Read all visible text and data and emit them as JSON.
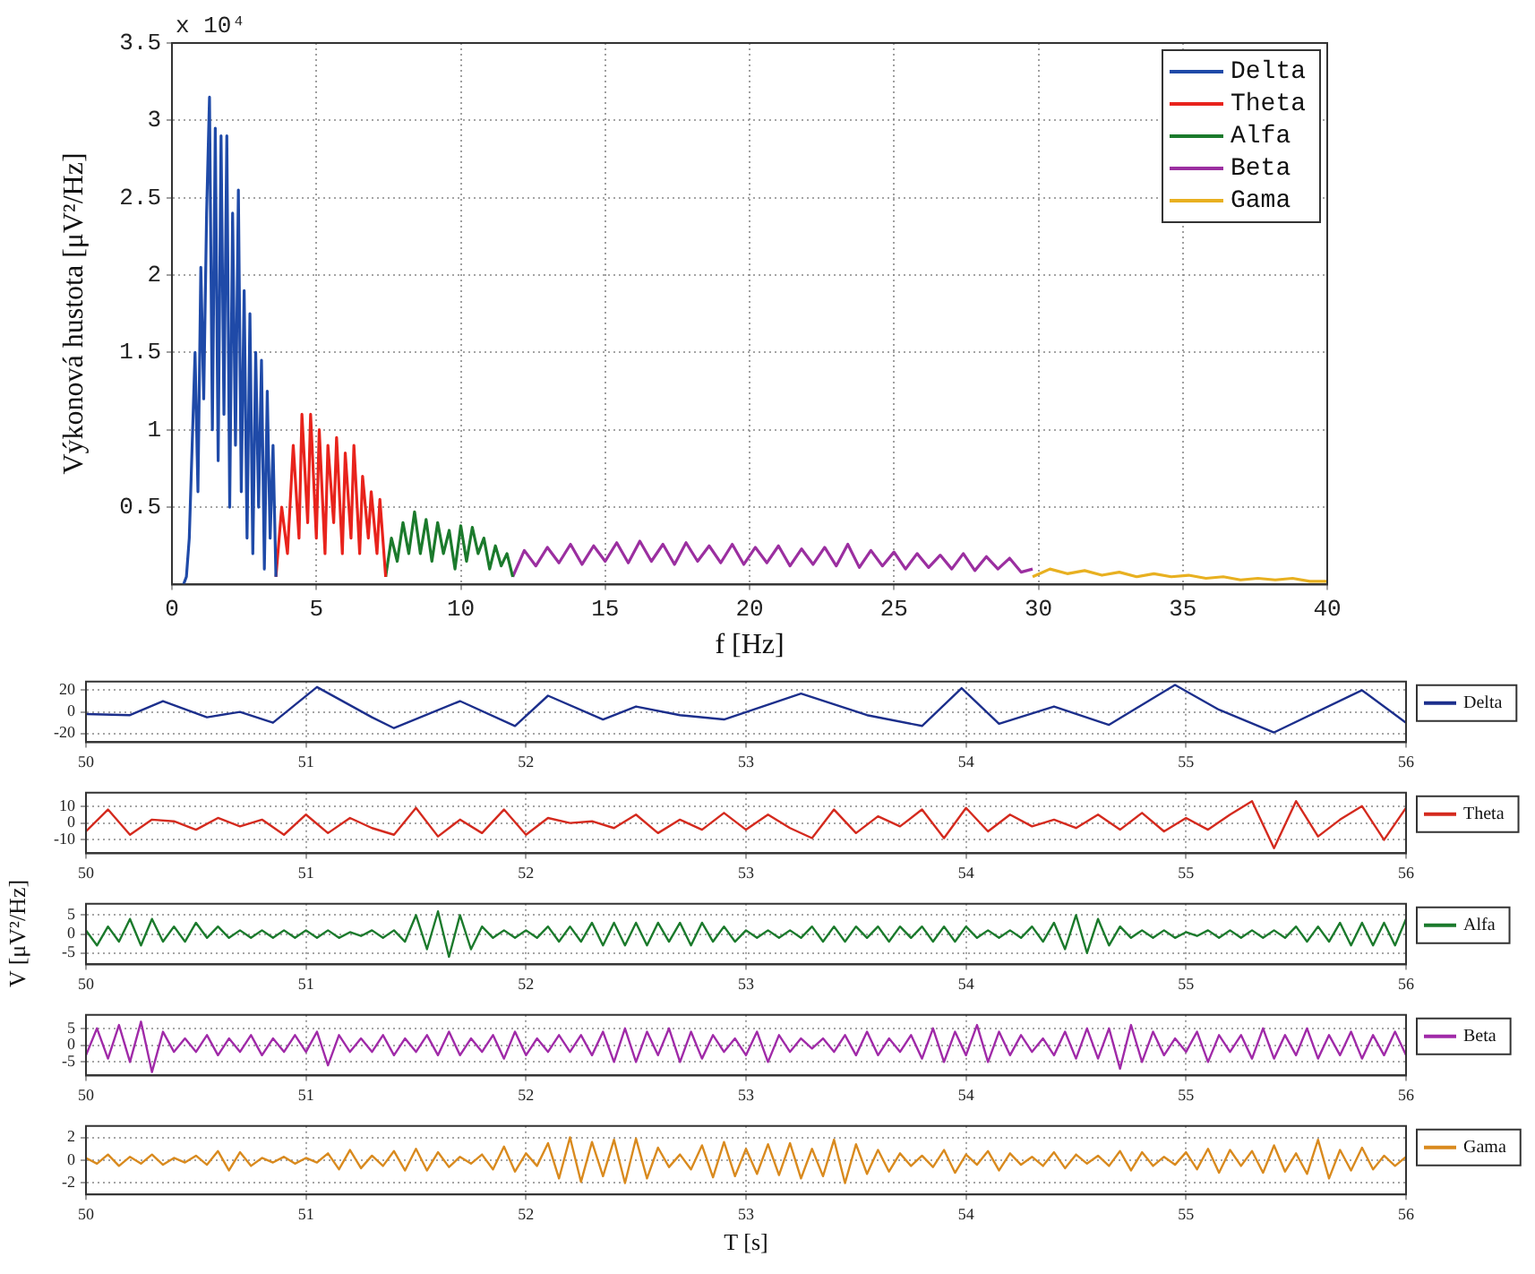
{
  "chart_data": [
    {
      "type": "line",
      "xlabel": "f [Hz]",
      "ylabel": "Výkonová hustota [μV²/Hz]",
      "annotations": [
        "x 10⁴"
      ],
      "xlim": [
        0,
        40
      ],
      "xticks": [
        0,
        5,
        10,
        15,
        20,
        25,
        30,
        35,
        40
      ],
      "ylim": [
        0,
        3.5
      ],
      "yticks": [
        0.5,
        1,
        1.5,
        2,
        2.5,
        3,
        3.5
      ],
      "grid": true,
      "legend": "top right",
      "series": [
        {
          "name": "Delta",
          "color": "#1f4aa8",
          "x": [
            0.4,
            0.5,
            0.6,
            0.7,
            0.8,
            0.9,
            1.0,
            1.1,
            1.2,
            1.3,
            1.4,
            1.5,
            1.6,
            1.7,
            1.8,
            1.9,
            2.0,
            2.1,
            2.2,
            2.3,
            2.4,
            2.5,
            2.6,
            2.7,
            2.8,
            2.9,
            3.0,
            3.1,
            3.2,
            3.3,
            3.4,
            3.5,
            3.6
          ],
          "values": [
            0,
            0.05,
            0.3,
            0.9,
            1.5,
            0.6,
            2.05,
            1.2,
            2.4,
            3.15,
            1.0,
            2.95,
            0.8,
            2.9,
            1.1,
            2.9,
            0.5,
            2.4,
            0.9,
            2.55,
            0.6,
            1.9,
            0.3,
            1.75,
            0.2,
            1.5,
            0.5,
            1.45,
            0.1,
            1.25,
            0.3,
            0.9,
            0.05
          ]
        },
        {
          "name": "Theta",
          "color": "#e8231c",
          "x": [
            3.6,
            3.8,
            4.0,
            4.2,
            4.4,
            4.5,
            4.7,
            4.8,
            5.0,
            5.1,
            5.3,
            5.4,
            5.6,
            5.7,
            5.9,
            6.0,
            6.2,
            6.3,
            6.5,
            6.6,
            6.8,
            6.9,
            7.1,
            7.2,
            7.3,
            7.4
          ],
          "values": [
            0.05,
            0.5,
            0.2,
            0.9,
            0.3,
            1.1,
            0.4,
            1.1,
            0.3,
            1.0,
            0.2,
            0.9,
            0.4,
            0.95,
            0.2,
            0.85,
            0.3,
            0.9,
            0.2,
            0.7,
            0.3,
            0.6,
            0.2,
            0.55,
            0.3,
            0.05
          ]
        },
        {
          "name": "Alfa",
          "color": "#1b7a2c",
          "x": [
            7.4,
            7.6,
            7.8,
            8.0,
            8.2,
            8.4,
            8.6,
            8.8,
            9.0,
            9.2,
            9.4,
            9.6,
            9.8,
            10.0,
            10.2,
            10.4,
            10.6,
            10.8,
            11.0,
            11.2,
            11.4,
            11.6,
            11.8
          ],
          "values": [
            0.05,
            0.3,
            0.15,
            0.4,
            0.2,
            0.47,
            0.2,
            0.42,
            0.15,
            0.4,
            0.2,
            0.35,
            0.1,
            0.38,
            0.15,
            0.37,
            0.2,
            0.3,
            0.1,
            0.25,
            0.12,
            0.2,
            0.05
          ]
        },
        {
          "name": "Beta",
          "color": "#9b2fa0",
          "x": [
            11.8,
            12.2,
            12.6,
            13,
            13.4,
            13.8,
            14.2,
            14.6,
            15,
            15.4,
            15.8,
            16.2,
            16.6,
            17,
            17.4,
            17.8,
            18.2,
            18.6,
            19,
            19.4,
            19.8,
            20.2,
            20.6,
            21,
            21.4,
            21.8,
            22.2,
            22.6,
            23,
            23.4,
            23.8,
            24.2,
            24.6,
            25,
            25.4,
            25.8,
            26.2,
            26.6,
            27,
            27.4,
            27.8,
            28.2,
            28.6,
            29,
            29.4,
            29.8
          ],
          "values": [
            0.05,
            0.22,
            0.12,
            0.24,
            0.14,
            0.26,
            0.13,
            0.25,
            0.15,
            0.27,
            0.14,
            0.28,
            0.15,
            0.26,
            0.13,
            0.27,
            0.15,
            0.25,
            0.14,
            0.26,
            0.13,
            0.24,
            0.14,
            0.25,
            0.12,
            0.23,
            0.13,
            0.24,
            0.12,
            0.26,
            0.11,
            0.22,
            0.12,
            0.21,
            0.1,
            0.2,
            0.11,
            0.19,
            0.1,
            0.2,
            0.09,
            0.18,
            0.1,
            0.17,
            0.08,
            0.1
          ]
        },
        {
          "name": "Gama",
          "color": "#e8b020",
          "x": [
            29.8,
            30.4,
            31,
            31.6,
            32.2,
            32.8,
            33.4,
            34,
            34.6,
            35.2,
            35.8,
            36.4,
            37,
            37.6,
            38.2,
            38.8,
            39.4,
            40
          ],
          "values": [
            0.05,
            0.1,
            0.07,
            0.09,
            0.06,
            0.08,
            0.05,
            0.07,
            0.05,
            0.06,
            0.04,
            0.05,
            0.03,
            0.04,
            0.03,
            0.04,
            0.02,
            0.02
          ]
        }
      ]
    },
    {
      "type": "line",
      "xlim": [
        50,
        56
      ],
      "xticks": [
        50,
        51,
        52,
        53,
        54,
        55,
        56
      ],
      "ylim": [
        -28,
        28
      ],
      "yticks": [
        -20,
        0,
        20
      ],
      "grid": true,
      "legend": "right",
      "x": [
        50,
        50.2,
        50.35,
        50.55,
        50.7,
        50.85,
        51.05,
        51.3,
        51.4,
        51.7,
        51.95,
        52.1,
        52.35,
        52.5,
        52.7,
        52.9,
        53.25,
        53.55,
        53.8,
        53.98,
        54.15,
        54.4,
        54.65,
        54.95,
        55.15,
        55.4,
        55.8,
        56
      ],
      "series": [
        {
          "name": "Delta",
          "color": "#1c2f8c",
          "values": [
            -2,
            -3,
            10,
            -5,
            0,
            -10,
            23,
            -5,
            -15,
            10,
            -13,
            15,
            -7,
            5,
            -3,
            -7,
            17,
            -3,
            -13,
            22,
            -11,
            5,
            -12,
            25,
            2,
            -19,
            20,
            -10
          ]
        }
      ]
    },
    {
      "type": "line",
      "xlim": [
        50,
        56
      ],
      "xticks": [
        50,
        51,
        52,
        53,
        54,
        55,
        56
      ],
      "ylim": [
        -18,
        18
      ],
      "yticks": [
        -10,
        0,
        10
      ],
      "grid": true,
      "legend": "right",
      "x": [
        50,
        50.1,
        50.2,
        50.3,
        50.4,
        50.5,
        50.6,
        50.7,
        50.8,
        50.9,
        51,
        51.1,
        51.2,
        51.3,
        51.4,
        51.5,
        51.6,
        51.7,
        51.8,
        51.9,
        52,
        52.1,
        52.2,
        52.3,
        52.4,
        52.5,
        52.6,
        52.7,
        52.8,
        52.9,
        53,
        53.1,
        53.2,
        53.3,
        53.4,
        53.5,
        53.6,
        53.7,
        53.8,
        53.9,
        54,
        54.1,
        54.2,
        54.3,
        54.4,
        54.5,
        54.6,
        54.7,
        54.8,
        54.9,
        55,
        55.1,
        55.2,
        55.3,
        55.4,
        55.5,
        55.6,
        55.7,
        55.8,
        55.9,
        56
      ],
      "series": [
        {
          "name": "Theta",
          "color": "#d42a1e",
          "values": [
            -5,
            8,
            -7,
            2,
            1,
            -4,
            3,
            -2,
            2,
            -7,
            5,
            -6,
            3,
            -3,
            -7,
            9,
            -8,
            2,
            -6,
            8,
            -7,
            3,
            0,
            1,
            -3,
            5,
            -6,
            2,
            -4,
            6,
            -4,
            5,
            -3,
            -9,
            8,
            -6,
            4,
            -2,
            8,
            -9,
            9,
            -5,
            5,
            -2,
            2,
            -3,
            5,
            -4,
            6,
            -5,
            3,
            -4,
            5,
            13,
            -15,
            13,
            -8,
            2,
            10,
            -10,
            9
          ]
        }
      ]
    },
    {
      "type": "line",
      "ylabel": "V [μV²/Hz]",
      "xlim": [
        50,
        56
      ],
      "xticks": [
        50,
        51,
        52,
        53,
        54,
        55,
        56
      ],
      "ylim": [
        -8,
        8
      ],
      "yticks": [
        -5,
        0,
        5
      ],
      "grid": true,
      "legend": "right",
      "x": [
        50,
        50.05,
        50.1,
        50.15,
        50.2,
        50.25,
        50.3,
        50.35,
        50.4,
        50.45,
        50.5,
        50.55,
        50.6,
        50.65,
        50.7,
        50.75,
        50.8,
        50.85,
        50.9,
        50.95,
        51,
        51.05,
        51.1,
        51.15,
        51.2,
        51.25,
        51.3,
        51.35,
        51.4,
        51.45,
        51.5,
        51.55,
        51.6,
        51.65,
        51.7,
        51.75,
        51.8,
        51.85,
        51.9,
        51.95,
        52,
        52.05,
        52.1,
        52.15,
        52.2,
        52.25,
        52.3,
        52.35,
        52.4,
        52.45,
        52.5,
        52.55,
        52.6,
        52.65,
        52.7,
        52.75,
        52.8,
        52.85,
        52.9,
        52.95,
        53,
        53.05,
        53.1,
        53.15,
        53.2,
        53.25,
        53.3,
        53.35,
        53.4,
        53.45,
        53.5,
        53.55,
        53.6,
        53.65,
        53.7,
        53.75,
        53.8,
        53.85,
        53.9,
        53.95,
        54,
        54.05,
        54.1,
        54.15,
        54.2,
        54.25,
        54.3,
        54.35,
        54.4,
        54.45,
        54.5,
        54.55,
        54.6,
        54.65,
        54.7,
        54.75,
        54.8,
        54.85,
        54.9,
        54.95,
        55,
        55.05,
        55.1,
        55.15,
        55.2,
        55.25,
        55.3,
        55.35,
        55.4,
        55.45,
        55.5,
        55.55,
        55.6,
        55.65,
        55.7,
        55.75,
        55.8,
        55.85,
        55.9,
        55.95,
        56
      ],
      "series": [
        {
          "name": "Alfa",
          "color": "#1b7a2c",
          "values": [
            1,
            -3,
            2,
            -2,
            4,
            -3,
            4,
            -2,
            2,
            -2,
            3,
            -1,
            2,
            -1,
            1,
            -1,
            1,
            -1,
            1,
            -1,
            1,
            -1,
            1,
            -1,
            0.5,
            -0.5,
            1,
            -1,
            1,
            -2,
            5,
            -4,
            6,
            -6,
            5,
            -4,
            2,
            -1,
            1,
            -1,
            1,
            -1,
            2,
            -2,
            2,
            -2,
            3,
            -3,
            3,
            -3,
            3,
            -3,
            3,
            -2,
            3,
            -3,
            3,
            -2,
            2,
            -2,
            1,
            -1,
            1,
            -1,
            1,
            -1,
            2,
            -2,
            2,
            -2,
            2,
            -1,
            2,
            -2,
            2,
            -1,
            2,
            -2,
            2,
            -2,
            2,
            -1,
            1,
            -1,
            1,
            -1,
            2,
            -2,
            3,
            -4,
            5,
            -5,
            4,
            -3,
            2,
            -1,
            1,
            -1,
            1,
            -1,
            0.5,
            -0.5,
            1,
            -1,
            1,
            -1,
            1,
            -1,
            1,
            -1,
            2,
            -2,
            2,
            -2,
            3,
            -3,
            3,
            -3,
            3,
            -3,
            4
          ]
        }
      ]
    },
    {
      "type": "line",
      "xlim": [
        50,
        56
      ],
      "xticks": [
        50,
        51,
        52,
        53,
        54,
        55,
        56
      ],
      "ylim": [
        -9,
        9
      ],
      "yticks": [
        -5,
        0,
        5
      ],
      "grid": true,
      "legend": "right",
      "x": [
        50,
        50.05,
        50.1,
        50.15,
        50.2,
        50.25,
        50.3,
        50.35,
        50.4,
        50.45,
        50.5,
        50.55,
        50.6,
        50.65,
        50.7,
        50.75,
        50.8,
        50.85,
        50.9,
        50.95,
        51,
        51.05,
        51.1,
        51.15,
        51.2,
        51.25,
        51.3,
        51.35,
        51.4,
        51.45,
        51.5,
        51.55,
        51.6,
        51.65,
        51.7,
        51.75,
        51.8,
        51.85,
        51.9,
        51.95,
        52,
        52.05,
        52.1,
        52.15,
        52.2,
        52.25,
        52.3,
        52.35,
        52.4,
        52.45,
        52.5,
        52.55,
        52.6,
        52.65,
        52.7,
        52.75,
        52.8,
        52.85,
        52.9,
        52.95,
        53,
        53.05,
        53.1,
        53.15,
        53.2,
        53.25,
        53.3,
        53.35,
        53.4,
        53.45,
        53.5,
        53.55,
        53.6,
        53.65,
        53.7,
        53.75,
        53.8,
        53.85,
        53.9,
        53.95,
        54,
        54.05,
        54.1,
        54.15,
        54.2,
        54.25,
        54.3,
        54.35,
        54.4,
        54.45,
        54.5,
        54.55,
        54.6,
        54.65,
        54.7,
        54.75,
        54.8,
        54.85,
        54.9,
        54.95,
        55,
        55.05,
        55.1,
        55.15,
        55.2,
        55.25,
        55.3,
        55.35,
        55.4,
        55.45,
        55.5,
        55.55,
        55.6,
        55.65,
        55.7,
        55.75,
        55.8,
        55.85,
        55.9,
        55.95,
        56
      ],
      "series": [
        {
          "name": "Beta",
          "color": "#a02aa8",
          "values": [
            -3,
            5,
            -4,
            6,
            -5,
            7,
            -8,
            4,
            -2,
            2,
            -2,
            3,
            -3,
            2,
            -2,
            3,
            -3,
            2,
            -2,
            3,
            -2,
            4,
            -6,
            3,
            -2,
            2,
            -2,
            3,
            -3,
            2,
            -2,
            3,
            -3,
            4,
            -3,
            2,
            -2,
            3,
            -4,
            4,
            -3,
            2,
            -2,
            3,
            -2,
            3,
            -3,
            4,
            -5,
            5,
            -5,
            4,
            -3,
            5,
            -5,
            4,
            -4,
            3,
            -2,
            2,
            -3,
            4,
            -5,
            3,
            -2,
            2,
            -1,
            2,
            -2,
            3,
            -3,
            4,
            -3,
            2,
            -2,
            3,
            -4,
            5,
            -5,
            4,
            -3,
            6,
            -5,
            4,
            -3,
            3,
            -2,
            2,
            -3,
            4,
            -4,
            5,
            -4,
            5,
            -7,
            6,
            -5,
            4,
            -3,
            2,
            -2,
            4,
            -5,
            3,
            -2,
            3,
            -4,
            5,
            -4,
            3,
            -3,
            5,
            -4,
            3,
            -3,
            4,
            -4,
            3,
            -3,
            4,
            -3
          ]
        }
      ]
    },
    {
      "type": "line",
      "xlabel": "T [s]",
      "xlim": [
        50,
        56
      ],
      "xticks": [
        50,
        51,
        52,
        53,
        54,
        55,
        56
      ],
      "ylim": [
        -3,
        3
      ],
      "yticks": [
        -2,
        0,
        2
      ],
      "grid": true,
      "legend": "right",
      "x": [
        50,
        50.05,
        50.1,
        50.15,
        50.2,
        50.25,
        50.3,
        50.35,
        50.4,
        50.45,
        50.5,
        50.55,
        50.6,
        50.65,
        50.7,
        50.75,
        50.8,
        50.85,
        50.9,
        50.95,
        51,
        51.05,
        51.1,
        51.15,
        51.2,
        51.25,
        51.3,
        51.35,
        51.4,
        51.45,
        51.5,
        51.55,
        51.6,
        51.65,
        51.7,
        51.75,
        51.8,
        51.85,
        51.9,
        51.95,
        52,
        52.05,
        52.1,
        52.15,
        52.2,
        52.25,
        52.3,
        52.35,
        52.4,
        52.45,
        52.5,
        52.55,
        52.6,
        52.65,
        52.7,
        52.75,
        52.8,
        52.85,
        52.9,
        52.95,
        53,
        53.05,
        53.1,
        53.15,
        53.2,
        53.25,
        53.3,
        53.35,
        53.4,
        53.45,
        53.5,
        53.55,
        53.6,
        53.65,
        53.7,
        53.75,
        53.8,
        53.85,
        53.9,
        53.95,
        54,
        54.05,
        54.1,
        54.15,
        54.2,
        54.25,
        54.3,
        54.35,
        54.4,
        54.45,
        54.5,
        54.55,
        54.6,
        54.65,
        54.7,
        54.75,
        54.8,
        54.85,
        54.9,
        54.95,
        55,
        55.05,
        55.1,
        55.15,
        55.2,
        55.25,
        55.3,
        55.35,
        55.4,
        55.45,
        55.5,
        55.55,
        55.6,
        55.65,
        55.7,
        55.75,
        55.8,
        55.85,
        55.9,
        55.95,
        56
      ],
      "series": [
        {
          "name": "Gama",
          "color": "#d98a1e",
          "values": [
            0.2,
            -0.3,
            0.5,
            -0.5,
            0.3,
            -0.3,
            0.5,
            -0.4,
            0.2,
            -0.2,
            0.4,
            -0.4,
            0.8,
            -0.9,
            0.7,
            -0.5,
            0.2,
            -0.2,
            0.3,
            -0.3,
            0.2,
            -0.2,
            0.6,
            -0.8,
            0.9,
            -0.7,
            0.4,
            -0.5,
            0.8,
            -0.9,
            1.0,
            -0.9,
            0.7,
            -0.6,
            0.3,
            -0.3,
            0.5,
            -0.8,
            1.2,
            -1.0,
            0.6,
            -0.5,
            1.5,
            -1.6,
            2.0,
            -1.9,
            1.6,
            -1.4,
            1.8,
            -2.0,
            1.9,
            -1.6,
            1.1,
            -0.6,
            0.5,
            -0.8,
            1.3,
            -1.5,
            1.6,
            -1.4,
            1.0,
            -1.2,
            1.4,
            -1.3,
            1.5,
            -1.6,
            1.0,
            -1.4,
            1.8,
            -2.0,
            1.4,
            -1.2,
            0.9,
            -1.0,
            0.6,
            -0.5,
            0.4,
            -0.6,
            0.9,
            -1.1,
            0.5,
            -0.4,
            0.8,
            -0.9,
            0.6,
            -0.4,
            0.3,
            -0.5,
            0.7,
            -0.7,
            0.5,
            -0.3,
            0.4,
            -0.5,
            0.8,
            -0.9,
            0.7,
            -0.5,
            0.3,
            -0.4,
            0.7,
            -0.8,
            1.0,
            -1.1,
            0.9,
            -0.5,
            0.8,
            -1.1,
            1.3,
            -1.0,
            0.6,
            -1.2,
            1.8,
            -1.6,
            0.9,
            -0.9,
            1.1,
            -0.8,
            0.4,
            -0.5,
            0.3
          ]
        }
      ]
    }
  ]
}
